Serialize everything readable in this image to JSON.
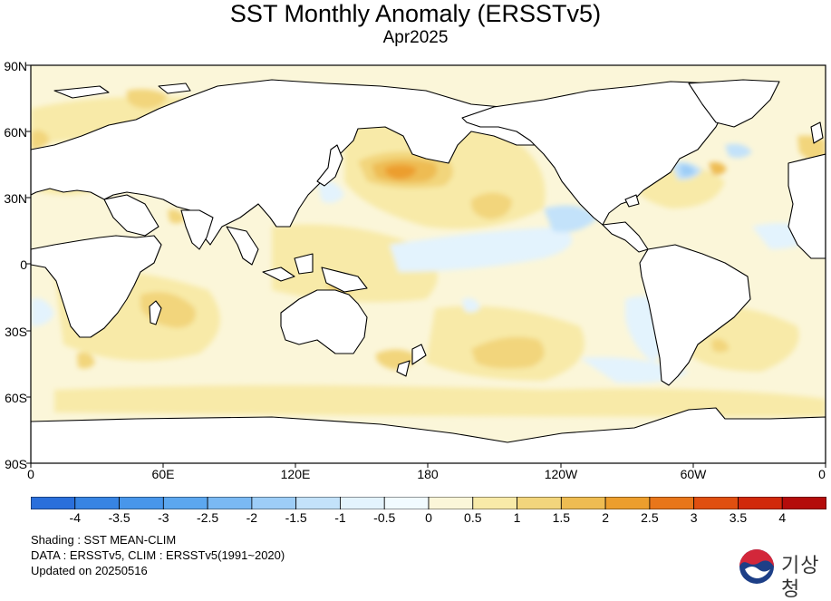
{
  "title": "SST Monthly Anomaly (ERSSTv5)",
  "subtitle": "Apr2025",
  "lat_labels": [
    "90N",
    "60N",
    "30N",
    "0",
    "30S",
    "60S",
    "90S"
  ],
  "lon_labels": [
    "0",
    "60E",
    "120E",
    "180",
    "120W",
    "60W",
    "0"
  ],
  "colorbar": {
    "labels": [
      "-4",
      "-3.5",
      "-3",
      "-2.5",
      "-2",
      "-1.5",
      "-1",
      "-0.5",
      "0",
      "0.5",
      "1",
      "1.5",
      "2",
      "2.5",
      "3",
      "3.5",
      "4"
    ],
    "colors": [
      "#2a6fdb",
      "#3784e3",
      "#4896ea",
      "#5ca7ef",
      "#7ab9f3",
      "#9dcdf7",
      "#c3e2fa",
      "#e3f3fd",
      "#f1fbff",
      "#fbf6d9",
      "#f8eaa8",
      "#f2d57c",
      "#eebc52",
      "#ec9e2d",
      "#e8761a",
      "#e04f10",
      "#d1290b",
      "#b40c0b"
    ]
  },
  "footer": {
    "shading": "Shading : SST MEAN-CLIM",
    "data": "DATA : ERSSTv5, CLIM : ERSSTv5(1991~2020)",
    "updated": "Updated on 20250516"
  },
  "logo": {
    "text": "기상청",
    "colors": {
      "blue": "#1d3f87",
      "red": "#d3273a"
    }
  }
}
